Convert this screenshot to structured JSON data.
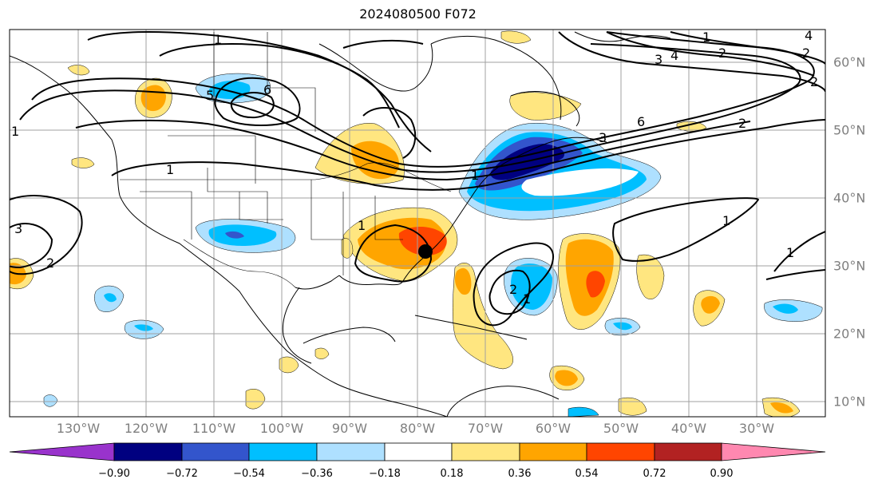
{
  "title": "2024080500 F072",
  "lon_labels": [
    "130°W",
    "120°W",
    "110°W",
    "100°W",
    "90°W",
    "80°W",
    "70°W",
    "60°W",
    "50°W",
    "40°W",
    "30°W"
  ],
  "lat_labels": [
    "60°N",
    "50°N",
    "40°N",
    "30°N",
    "20°N",
    "10°N"
  ],
  "colorbar": {
    "labels": [
      "−0.90",
      "−0.72",
      "−0.54",
      "−0.36",
      "−0.18",
      "0.18",
      "0.36",
      "0.54",
      "0.72",
      "0.90"
    ],
    "colors": [
      "#9933cc",
      "#000080",
      "#3355cc",
      "#00bfff",
      "#aee0ff",
      "#ffffff",
      "#ffe680",
      "#ffa500",
      "#ff4500",
      "#b22222",
      "#ff88b0"
    ]
  },
  "contour_labels": [
    "1",
    "1",
    "1",
    "1",
    "1",
    "1",
    "1",
    "1",
    "1",
    "2",
    "2",
    "2",
    "2",
    "2",
    "2",
    "3",
    "3",
    "3",
    "4",
    "4",
    "5",
    "6",
    "6"
  ],
  "marker": "storm-center-dot"
}
